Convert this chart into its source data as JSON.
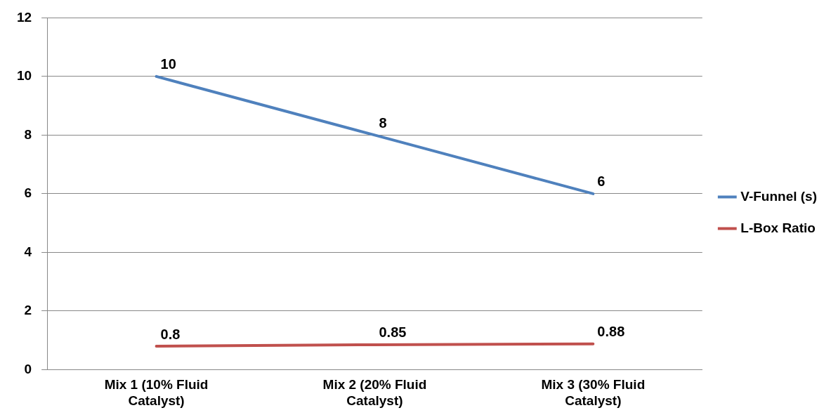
{
  "chart_data": {
    "type": "line",
    "categories": [
      "Mix 1 (10% Fluid Catalyst)",
      "Mix 2 (20% Fluid Catalyst)",
      "Mix 3 (30% Fluid Catalyst)"
    ],
    "series": [
      {
        "name": "V-Funnel (s)",
        "color": "#4f81bd",
        "values": [
          10,
          8,
          6
        ]
      },
      {
        "name": "L-Box Ratio",
        "color": "#c0504d",
        "values": [
          0.8,
          0.85,
          0.88
        ]
      }
    ],
    "ylim": [
      0,
      12
    ],
    "yticks": [
      0,
      2,
      4,
      6,
      8,
      10,
      12
    ],
    "grid": "y",
    "legend": "right",
    "marker": "none",
    "line_style": "solid",
    "data_labels": true
  }
}
